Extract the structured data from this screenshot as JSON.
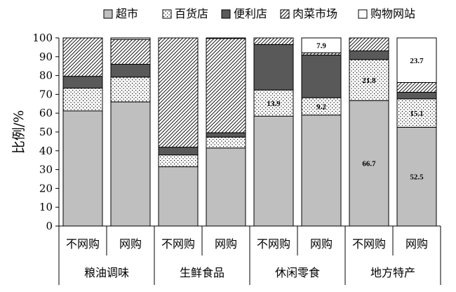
{
  "chart_data": {
    "type": "bar",
    "stacked": true,
    "ylabel": "比例/%",
    "ylim": [
      0,
      100
    ],
    "yticks": [
      0,
      10,
      20,
      30,
      40,
      50,
      60,
      70,
      80,
      90,
      100
    ],
    "legend_position": "top",
    "groups": [
      "粮油调味",
      "生鲜食品",
      "休闲零食",
      "地方特产"
    ],
    "categories": [
      "不网购",
      "网购",
      "不网购",
      "网购",
      "不网购",
      "网购",
      "不网购",
      "网购"
    ],
    "series": [
      {
        "name": "超市",
        "values": [
          61.2,
          66.0,
          31.5,
          41.5,
          58.4,
          59.0,
          66.7,
          52.5
        ],
        "fill": "#bfbfbf"
      },
      {
        "name": "百货店",
        "values": [
          12.1,
          13.2,
          6.3,
          5.8,
          13.9,
          9.2,
          21.8,
          15.1
        ],
        "fill": "dots"
      },
      {
        "name": "便利店",
        "values": [
          6.3,
          6.8,
          4.1,
          2.3,
          24.2,
          22.7,
          4.6,
          3.5
        ],
        "fill": "#595959"
      },
      {
        "name": "肉菜市场",
        "values": [
          20.4,
          13.2,
          58.1,
          50.1,
          3.5,
          1.2,
          6.9,
          5.2
        ],
        "fill": "hatch"
      },
      {
        "name": "购物网站",
        "values": [
          0,
          0.8,
          0,
          0.3,
          0,
          7.9,
          0,
          23.7
        ],
        "fill": "#ffffff"
      }
    ],
    "data_labels": [
      {
        "bar": 4,
        "series": 1,
        "text": "13.9"
      },
      {
        "bar": 5,
        "series": 1,
        "text": "9.2"
      },
      {
        "bar": 5,
        "series": 4,
        "text": "7.9"
      },
      {
        "bar": 6,
        "series": 1,
        "text": "21.8"
      },
      {
        "bar": 6,
        "series": 0,
        "text": "66.7"
      },
      {
        "bar": 7,
        "series": 1,
        "text": "15.1"
      },
      {
        "bar": 7,
        "series": 4,
        "text": "23.7"
      },
      {
        "bar": 7,
        "series": 0,
        "text": "52.5"
      }
    ]
  }
}
